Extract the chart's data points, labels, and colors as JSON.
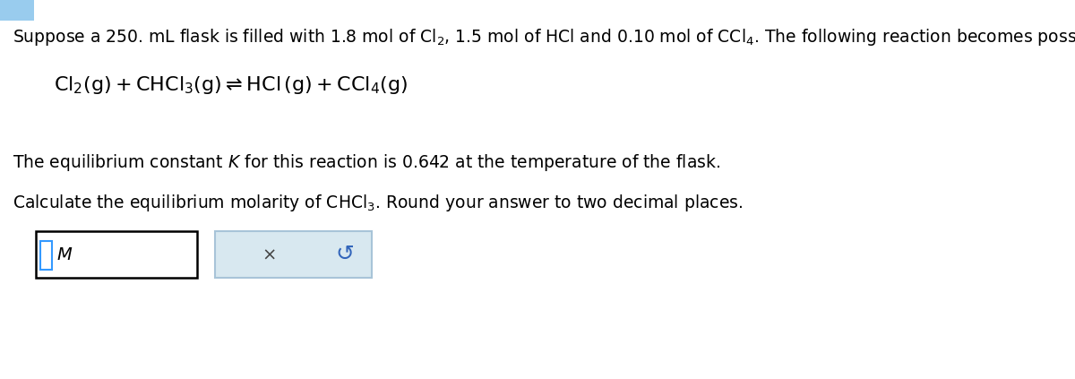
{
  "bg_color": "#ffffff",
  "text1": "Suppose a 250. mL flask is filled with 1.8 mol of Cl₂, 1.5 mol of HCl and 0.10 mol of CCl₄. The following reaction becomes possible:",
  "text3": "The equilibrium constant $K$ for this reaction is 0.642 at the temperature of the flask.",
  "text4": "Calculate the equilibrium molarity of CHCl$_3$. Round your answer to two decimal places.",
  "font_size_main": 13.5,
  "font_size_eq": 16,
  "input_border_color": "#000000",
  "button_border_color": "#a8c4d8",
  "button_bg_color": "#d8e8f0",
  "blue_square_color": "#3399ff",
  "tab_color": "#99ccee"
}
